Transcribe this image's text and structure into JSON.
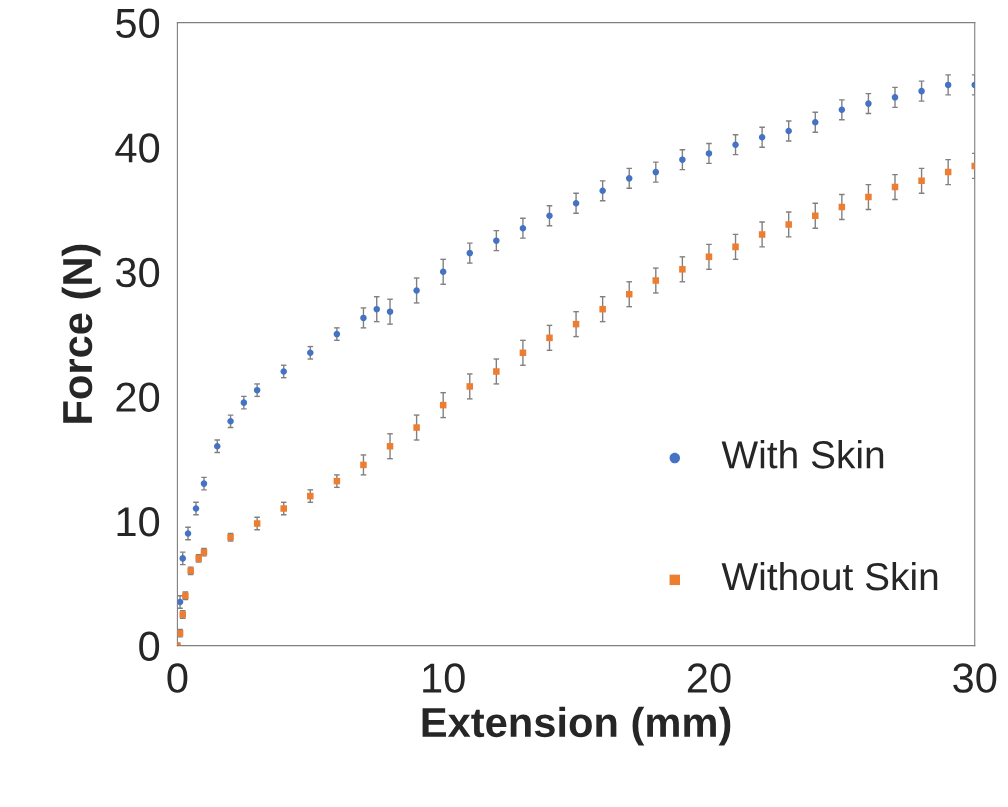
{
  "chart_data": {
    "type": "scatter",
    "xlabel": "Extension (mm)",
    "ylabel": "Force (N)",
    "xlim": [
      0,
      30
    ],
    "ylim": [
      0,
      50
    ],
    "xticks": [
      0,
      10,
      20,
      30
    ],
    "yticks": [
      0,
      10,
      20,
      30,
      40,
      50
    ],
    "grid": false,
    "legend": "bottom right",
    "series": [
      {
        "name": "With Skin",
        "color": "#4472c4",
        "marker": "circle",
        "x": [
          0,
          0.1,
          0.2,
          0.4,
          0.7,
          1,
          1.5,
          2,
          2.5,
          3,
          4,
          5,
          6,
          7,
          7.5,
          8,
          9,
          10,
          11,
          12,
          13,
          14,
          15,
          16,
          17,
          18,
          19,
          20,
          21,
          22,
          23,
          24,
          25,
          26,
          27,
          28,
          29,
          30
        ],
        "values": [
          0,
          3.5,
          7,
          9,
          11,
          13,
          16,
          18,
          19.5,
          20.5,
          22,
          23.5,
          25,
          26.3,
          27,
          26.8,
          28.5,
          30,
          31.5,
          32.5,
          33.5,
          34.5,
          35.5,
          36.5,
          37.5,
          38,
          39,
          39.5,
          40.2,
          40.8,
          41.3,
          42,
          43,
          43.5,
          44,
          44.5,
          45,
          45
        ],
        "errors": [
          0,
          0.5,
          0.5,
          0.5,
          0.5,
          0.5,
          0.5,
          0.5,
          0.5,
          0.5,
          0.5,
          0.5,
          0.5,
          0.8,
          1,
          1,
          1,
          1,
          0.8,
          0.8,
          0.8,
          0.8,
          0.8,
          0.8,
          0.8,
          0.8,
          0.8,
          0.8,
          0.8,
          0.8,
          0.8,
          0.8,
          0.8,
          0.8,
          0.8,
          0.8,
          0.8,
          0.8
        ]
      },
      {
        "name": "Without Skin",
        "color": "#ed7d31",
        "marker": "square",
        "x": [
          0,
          0.1,
          0.2,
          0.3,
          0.5,
          0.8,
          1,
          2,
          3,
          4,
          5,
          6,
          7,
          8,
          9,
          10,
          11,
          12,
          13,
          14,
          15,
          16,
          17,
          18,
          19,
          20,
          21,
          22,
          23,
          24,
          25,
          26,
          27,
          28,
          29,
          30
        ],
        "values": [
          0,
          1,
          2.5,
          4,
          6,
          7,
          7.5,
          8.7,
          9.8,
          11,
          12,
          13.2,
          14.5,
          16,
          17.5,
          19.3,
          20.8,
          22,
          23.5,
          24.7,
          25.8,
          27,
          28.2,
          29.3,
          30.2,
          31.2,
          32,
          33,
          33.8,
          34.5,
          35.2,
          36,
          36.8,
          37.3,
          38,
          38.5
        ],
        "errors": [
          0,
          0.3,
          0.3,
          0.3,
          0.3,
          0.3,
          0.3,
          0.3,
          0.5,
          0.5,
          0.5,
          0.5,
          0.8,
          1,
          1,
          1,
          1,
          1,
          1,
          1,
          1,
          1,
          1,
          1,
          1,
          1,
          1,
          1,
          1,
          1,
          1,
          1,
          1,
          1,
          1,
          1
        ]
      }
    ]
  }
}
